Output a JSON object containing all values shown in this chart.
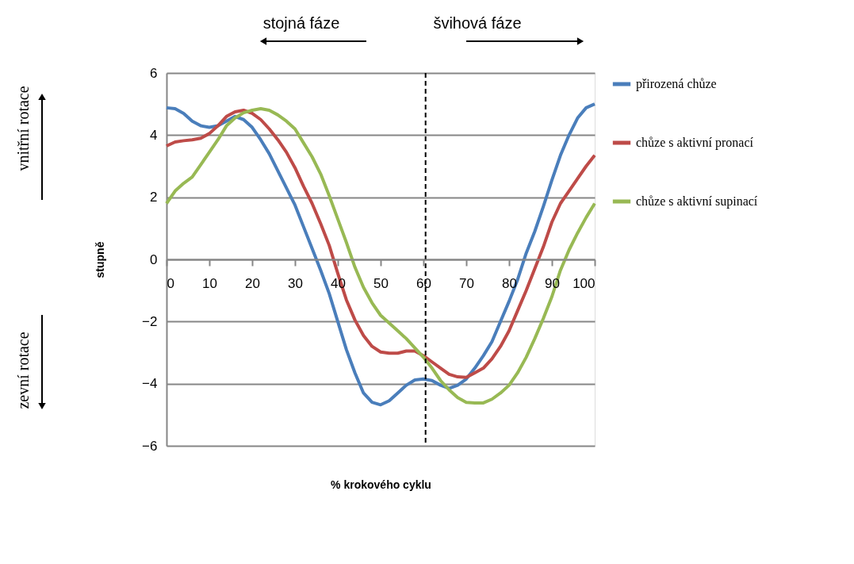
{
  "chart_data": {
    "type": "line",
    "xlabel": "% krokového cyklu",
    "ylabel": "stupně",
    "x": [
      0,
      2,
      4,
      6,
      8,
      10,
      12,
      14,
      16,
      18,
      20,
      22,
      24,
      26,
      28,
      30,
      32,
      34,
      36,
      38,
      40,
      42,
      44,
      46,
      48,
      50,
      52,
      54,
      56,
      58,
      60,
      62,
      64,
      66,
      68,
      70,
      72,
      74,
      76,
      78,
      80,
      82,
      84,
      86,
      88,
      90,
      92,
      94,
      96,
      98,
      100
    ],
    "series": [
      {
        "name": "přirozená chůze",
        "color": "#4a7ebb",
        "values": [
          4.88,
          4.85,
          4.7,
          4.45,
          4.3,
          4.25,
          4.3,
          4.45,
          4.6,
          4.5,
          4.25,
          3.85,
          3.4,
          2.85,
          2.3,
          1.75,
          1.05,
          0.35,
          -0.35,
          -1.1,
          -2.0,
          -2.9,
          -3.65,
          -4.3,
          -4.6,
          -4.68,
          -4.55,
          -4.3,
          -4.05,
          -3.88,
          -3.85,
          -3.9,
          -4.05,
          -4.15,
          -4.05,
          -3.85,
          -3.5,
          -3.1,
          -2.65,
          -2.0,
          -1.35,
          -0.65,
          0.2,
          0.9,
          1.7,
          2.55,
          3.35,
          4.0,
          4.55,
          4.88,
          5.0
        ]
      },
      {
        "name": "chůze s aktivní pronací",
        "color": "#be4b48",
        "values": [
          3.65,
          3.78,
          3.82,
          3.85,
          3.9,
          4.05,
          4.3,
          4.6,
          4.75,
          4.8,
          4.7,
          4.5,
          4.2,
          3.85,
          3.45,
          2.95,
          2.35,
          1.8,
          1.15,
          0.45,
          -0.45,
          -1.3,
          -1.95,
          -2.45,
          -2.8,
          -2.98,
          -3.02,
          -3.02,
          -2.95,
          -2.95,
          -3.1,
          -3.3,
          -3.5,
          -3.7,
          -3.78,
          -3.8,
          -3.65,
          -3.5,
          -3.2,
          -2.8,
          -2.3,
          -1.65,
          -1.0,
          -0.3,
          0.4,
          1.2,
          1.8,
          2.2,
          2.6,
          3.0,
          3.35
        ]
      },
      {
        "name": "chůze s aktivní supinací",
        "color": "#98b954",
        "values": [
          1.8,
          2.2,
          2.45,
          2.65,
          3.05,
          3.45,
          3.85,
          4.3,
          4.55,
          4.72,
          4.8,
          4.85,
          4.8,
          4.65,
          4.45,
          4.2,
          3.75,
          3.3,
          2.75,
          2.05,
          1.3,
          0.55,
          -0.25,
          -0.9,
          -1.4,
          -1.8,
          -2.05,
          -2.3,
          -2.55,
          -2.85,
          -3.15,
          -3.5,
          -3.9,
          -4.2,
          -4.45,
          -4.6,
          -4.62,
          -4.62,
          -4.5,
          -4.3,
          -4.05,
          -3.65,
          -3.15,
          -2.55,
          -1.9,
          -1.2,
          -0.35,
          0.3,
          0.85,
          1.35,
          1.8
        ]
      }
    ],
    "xlim": [
      0,
      100
    ],
    "xticks": [
      0,
      10,
      20,
      30,
      40,
      50,
      60,
      70,
      80,
      90,
      100
    ],
    "ylim": [
      -6,
      6
    ],
    "yticks": [
      -6,
      -4,
      -2,
      0,
      2,
      4,
      6
    ],
    "grid": "y",
    "legend": "right",
    "line_style": "solid",
    "ref_lines": [
      {
        "axis": "x",
        "value": 60.5,
        "color": "#000000",
        "line_style": "dashed"
      }
    ],
    "annotations": [
      "stojná fáze",
      "švihová fáze",
      "vnitřní rotace",
      "zevní rotace"
    ]
  }
}
